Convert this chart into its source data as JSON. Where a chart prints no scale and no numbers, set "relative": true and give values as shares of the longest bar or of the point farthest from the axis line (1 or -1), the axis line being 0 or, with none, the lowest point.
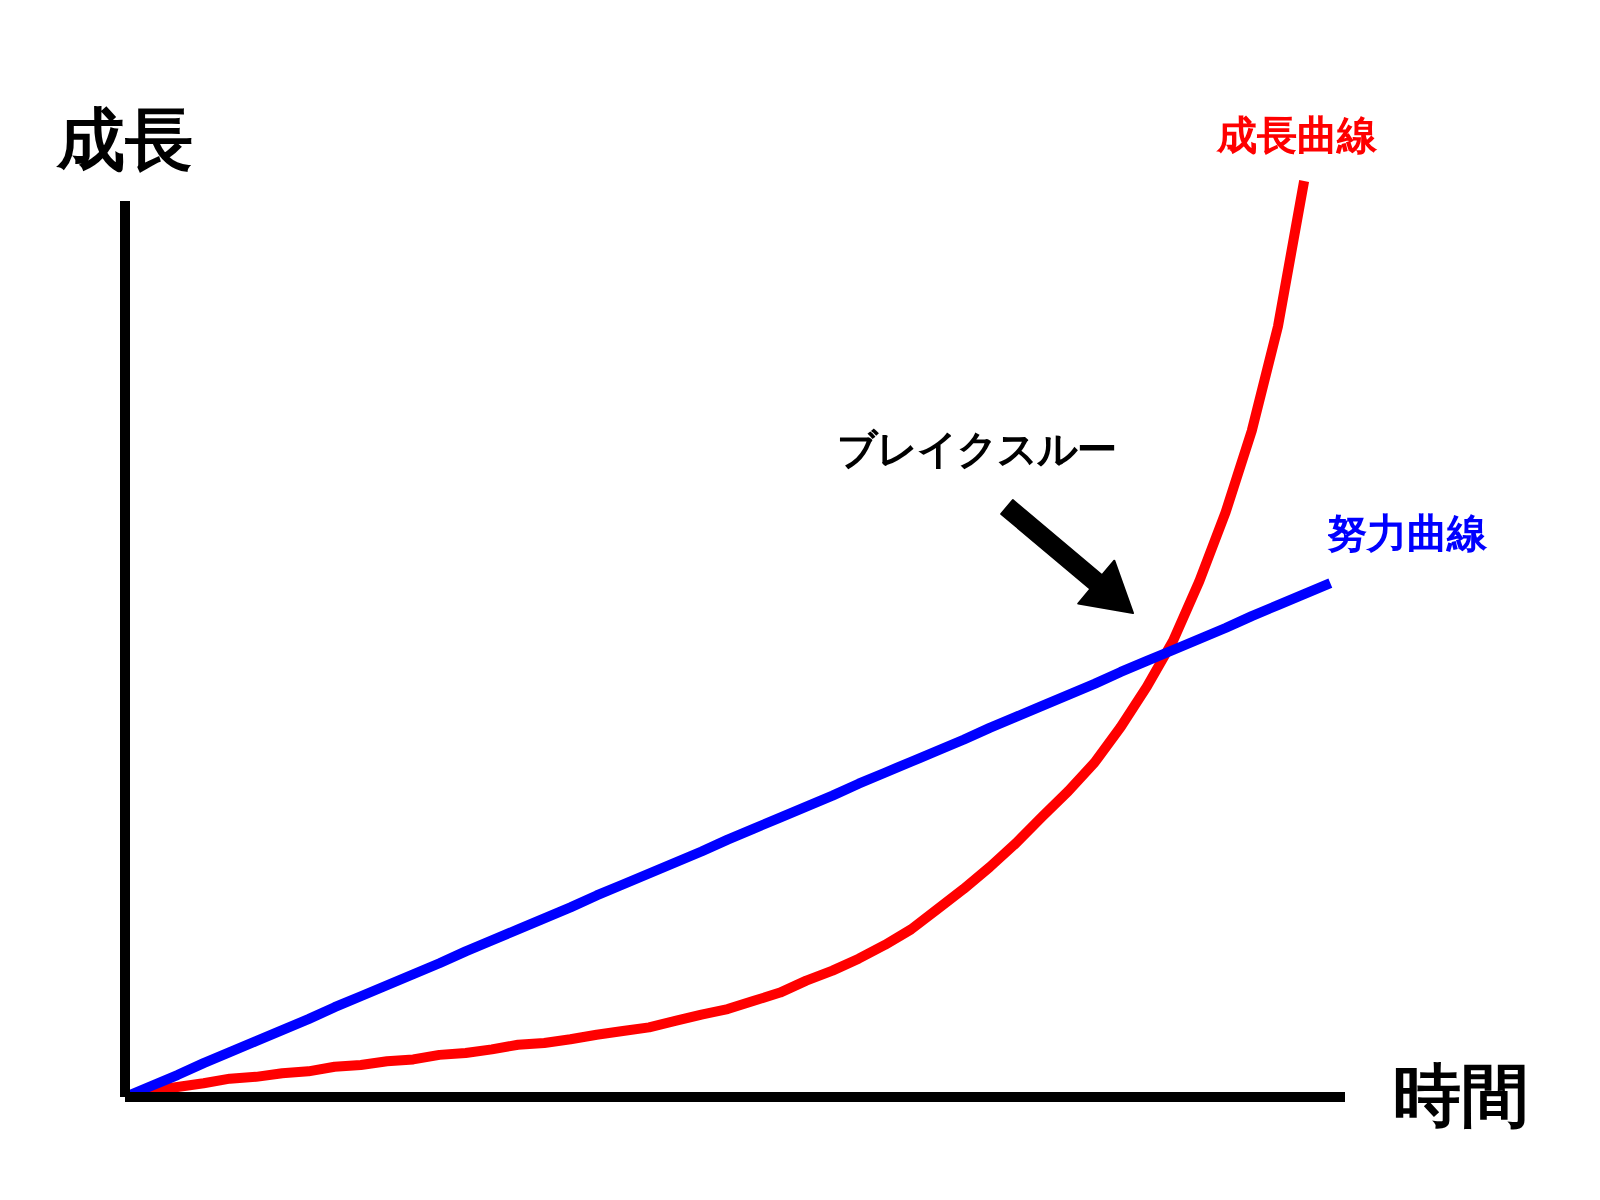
{
  "chart_data": {
    "type": "line",
    "relative": true,
    "xlabel": "時間",
    "ylabel": "成長",
    "marker": "none",
    "line_style": "solid",
    "categories": [
      null,
      null,
      null,
      null,
      null,
      null,
      null,
      null,
      null,
      null,
      null,
      null,
      null,
      null,
      null,
      null,
      null,
      null,
      null,
      null,
      null,
      null,
      null,
      null,
      null,
      null,
      null,
      null,
      null,
      null,
      null,
      null,
      null,
      null,
      null,
      null,
      null,
      null,
      null,
      null,
      null,
      null,
      null,
      null,
      null,
      null,
      null
    ],
    "series": [
      {
        "name": "成長曲線",
        "color": "#ff0000",
        "values": [
          0,
          0.007,
          0.011,
          0.015,
          0.02,
          0.022,
          0.026,
          0.028,
          0.033,
          0.035,
          0.039,
          0.041,
          0.046,
          0.048,
          0.052,
          0.057,
          0.059,
          0.063,
          0.068,
          0.072,
          0.076,
          0.083,
          0.09,
          0.096,
          0.105,
          0.114,
          0.127,
          0.138,
          0.151,
          0.166,
          0.183,
          0.205,
          0.227,
          0.251,
          0.277,
          0.306,
          0.334,
          0.365,
          0.404,
          0.448,
          0.498,
          0.563,
          0.638,
          0.727,
          0.841,
          1.0,
          null
        ]
      },
      {
        "name": "努力曲線",
        "color": "#0000ff",
        "values": [
          0,
          0.012,
          0.024,
          0.037,
          0.049,
          0.061,
          0.073,
          0.085,
          0.098,
          0.11,
          0.122,
          0.134,
          0.146,
          0.159,
          0.171,
          0.183,
          0.195,
          0.207,
          0.22,
          0.232,
          0.244,
          0.256,
          0.268,
          0.281,
          0.293,
          0.305,
          0.317,
          0.329,
          0.342,
          0.354,
          0.366,
          0.378,
          0.39,
          0.403,
          0.415,
          0.427,
          0.439,
          0.451,
          0.464,
          0.476,
          0.488,
          0.5,
          0.512,
          0.525,
          0.537,
          0.549,
          0.561
        ]
      }
    ],
    "annotations": [
      "ブレイクスルー"
    ]
  }
}
